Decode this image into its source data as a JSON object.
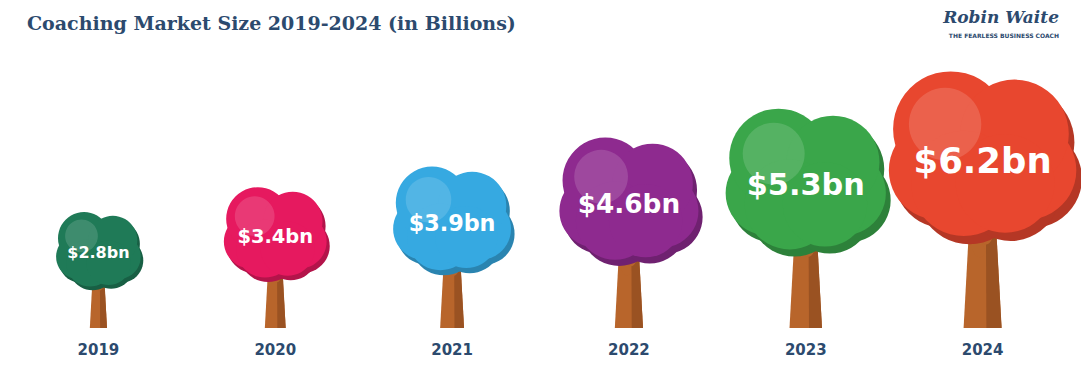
{
  "chart_data": {
    "type": "bar",
    "title": "Coaching Market Size 2019-2024 (in Billions)",
    "categories": [
      "2019",
      "2020",
      "2021",
      "2022",
      "2023",
      "2024"
    ],
    "values": [
      2.8,
      3.4,
      3.9,
      4.6,
      5.3,
      6.2
    ],
    "value_labels": [
      "$2.8bn",
      "$3.4bn",
      "$3.9bn",
      "$4.6bn",
      "$5.3bn",
      "$6.2bn"
    ],
    "colors": [
      "#1f7a57",
      "#e6195f",
      "#36a9e1",
      "#8e2a8f",
      "#3aa64a",
      "#e8472f"
    ],
    "ylim": [
      0,
      7
    ],
    "grid": false,
    "data_labels": true,
    "tick_labels": "x",
    "annotations": [
      "Robin Waite",
      "THE FEARLESS BUSINESS COACH"
    ]
  }
}
